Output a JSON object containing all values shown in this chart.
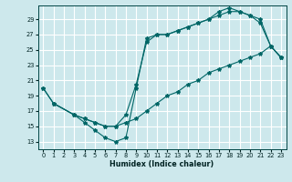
{
  "bg_color": "#cde8ec",
  "grid_color": "#b8d8dc",
  "line_color": "#006666",
  "xlabel": "Humidex (Indice chaleur)",
  "xlim": [
    -0.5,
    23.5
  ],
  "ylim": [
    12.0,
    30.8
  ],
  "xticks": [
    0,
    1,
    2,
    3,
    4,
    5,
    6,
    7,
    8,
    9,
    10,
    11,
    12,
    13,
    14,
    15,
    16,
    17,
    18,
    19,
    20,
    21,
    22,
    23
  ],
  "yticks": [
    13,
    15,
    17,
    19,
    21,
    23,
    25,
    27,
    29
  ],
  "line1_x": [
    0,
    1,
    3,
    4,
    5,
    6,
    7,
    8,
    9,
    10,
    11,
    12,
    13,
    14,
    15,
    16,
    17,
    18,
    19,
    20,
    21,
    22,
    23
  ],
  "line1_y": [
    20.0,
    18.0,
    16.5,
    16.0,
    15.5,
    15.0,
    15.0,
    15.5,
    16.0,
    17.0,
    18.0,
    19.0,
    19.5,
    20.5,
    21.0,
    22.0,
    22.5,
    23.0,
    23.5,
    24.0,
    24.5,
    25.5,
    24.0
  ],
  "line2_x": [
    0,
    1,
    3,
    4,
    5,
    6,
    7,
    8,
    9,
    10,
    11,
    12,
    13,
    14,
    15,
    16,
    17,
    18,
    19,
    20,
    21,
    22,
    23
  ],
  "line2_y": [
    20.0,
    18.0,
    16.5,
    16.0,
    15.5,
    15.0,
    15.0,
    16.5,
    20.5,
    26.0,
    27.0,
    27.0,
    27.5,
    28.0,
    28.5,
    29.0,
    29.5,
    30.0,
    30.0,
    29.5,
    29.0,
    25.5,
    24.0
  ],
  "line3_x": [
    1,
    3,
    4,
    5,
    6,
    7,
    8,
    9,
    10,
    11,
    12,
    13,
    14,
    15,
    16,
    17,
    18,
    19,
    20,
    21,
    22,
    23
  ],
  "line3_y": [
    18.0,
    16.5,
    15.5,
    14.5,
    13.5,
    13.0,
    13.5,
    20.0,
    26.5,
    27.0,
    27.0,
    27.5,
    28.0,
    28.5,
    29.0,
    30.0,
    30.5,
    30.0,
    29.5,
    28.5,
    25.5,
    24.0
  ]
}
